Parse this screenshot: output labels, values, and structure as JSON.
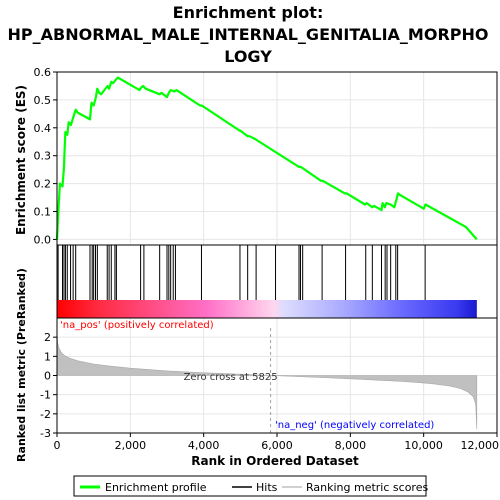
{
  "chart_data": {
    "type": "line",
    "title_lines": [
      "Enrichment plot:",
      "HP_ABNORMAL_MALE_INTERNAL_GENITALIA_MORPHO",
      "LOGY"
    ],
    "xlabel": "Rank in Ordered Dataset",
    "xlim": [
      0,
      12000
    ],
    "x_ticks": [
      0,
      2000,
      4000,
      6000,
      8000,
      10000,
      12000
    ],
    "x_tick_labels": [
      "0",
      "2,000",
      "4,000",
      "6,000",
      "8,000",
      "10,000",
      "12,000"
    ],
    "es_panel": {
      "ylabel": "Enrichment score (ES)",
      "ylim": [
        -0.02,
        0.6
      ],
      "y_ticks": [
        0.0,
        0.1,
        0.2,
        0.3,
        0.4,
        0.5,
        0.6
      ],
      "y_tick_labels": [
        "0.0",
        "0.1",
        "0.2",
        "0.3",
        "0.4",
        "0.5",
        "0.6"
      ],
      "series": [
        {
          "name": "Enrichment profile",
          "color": "#00ff00",
          "x": [
            0,
            40,
            80,
            100,
            150,
            190,
            210,
            230,
            280,
            320,
            380,
            460,
            510,
            560,
            900,
            940,
            1000,
            1060,
            1100,
            1150,
            1200,
            1380,
            1420,
            1480,
            1530,
            1620,
            1660,
            2250,
            2300,
            2350,
            2420,
            2800,
            2850,
            3000,
            3050,
            3100,
            3200,
            3260,
            3900,
            3950,
            4980,
            5000,
            5200,
            5250,
            5400,
            6600,
            6650,
            7200,
            7250,
            7850,
            7900,
            8400,
            8450,
            8600,
            8650,
            8850,
            8880,
            8940,
            8980,
            9100,
            9200,
            9250,
            9300,
            9350,
            10000,
            10050,
            11150,
            11450
          ],
          "y": [
            0.0,
            0.11,
            0.2,
            0.195,
            0.19,
            0.26,
            0.33,
            0.385,
            0.375,
            0.42,
            0.41,
            0.445,
            0.465,
            0.455,
            0.43,
            0.49,
            0.48,
            0.51,
            0.54,
            0.525,
            0.52,
            0.55,
            0.54,
            0.565,
            0.56,
            0.575,
            0.58,
            0.535,
            0.545,
            0.55,
            0.54,
            0.52,
            0.525,
            0.51,
            0.525,
            0.535,
            0.53,
            0.535,
            0.48,
            0.48,
            0.39,
            0.39,
            0.37,
            0.37,
            0.36,
            0.26,
            0.26,
            0.21,
            0.21,
            0.165,
            0.165,
            0.125,
            0.13,
            0.115,
            0.12,
            0.105,
            0.13,
            0.115,
            0.13,
            0.125,
            0.115,
            0.14,
            0.165,
            0.16,
            0.11,
            0.125,
            0.045,
            0.0
          ]
        }
      ]
    },
    "hits": {
      "name": "Hits",
      "color": "#000000",
      "positions": [
        30,
        150,
        190,
        230,
        280,
        370,
        440,
        510,
        900,
        960,
        1000,
        1050,
        1100,
        1370,
        1420,
        1480,
        1580,
        1620,
        2280,
        2370,
        2800,
        3000,
        3050,
        3100,
        3170,
        3230,
        3940,
        4990,
        5200,
        5430,
        5960,
        6600,
        6640,
        6700,
        7230,
        7870,
        8420,
        8600,
        8850,
        8950,
        9000,
        9100,
        9240,
        9290,
        10040
      ]
    },
    "rank_panel": {
      "ylabel": "Ranked list metric (PreRanked)",
      "ylim": [
        -3,
        3
      ],
      "y_ticks": [
        -3,
        -2,
        -1,
        0,
        1,
        2
      ],
      "y_tick_labels": [
        "-3",
        "-2",
        "-1",
        "0",
        "1",
        "2"
      ],
      "series": [
        {
          "name": "Ranking metric scores",
          "color": "#c0c0c0",
          "x": [
            0,
            20,
            60,
            120,
            200,
            350,
            600,
            1000,
            1500,
            2000,
            3000,
            4000,
            5000,
            5825,
            6500,
            7500,
            8500,
            9500,
            10200,
            10700,
            11000,
            11200,
            11350,
            11420,
            11450
          ],
          "y": [
            2.3,
            1.7,
            1.4,
            1.2,
            1.05,
            0.9,
            0.75,
            0.6,
            0.48,
            0.38,
            0.24,
            0.14,
            0.07,
            0.0,
            -0.05,
            -0.13,
            -0.22,
            -0.32,
            -0.42,
            -0.55,
            -0.68,
            -0.85,
            -1.1,
            -1.5,
            -2.8
          ]
        }
      ],
      "zero_cross_x": 5825,
      "annotations": {
        "zero_cross": "Zero cross at 5825",
        "pos_label": "'na_pos' (positively correlated)",
        "neg_label": "'na_neg' (negatively correlated)"
      },
      "pos_label_color": "#ff0000",
      "neg_label_color": "#0000ff"
    },
    "color_bar": {
      "stops": [
        {
          "x": 0,
          "color": "#ff0000"
        },
        {
          "x": 1100,
          "color": "#ff2a40"
        },
        {
          "x": 4100,
          "color": "#ff70c8"
        },
        {
          "x": 5900,
          "color": "#ffd6ee"
        },
        {
          "x": 6200,
          "color": "#dcdcff"
        },
        {
          "x": 7800,
          "color": "#aaaaff"
        },
        {
          "x": 9400,
          "color": "#6a6aff"
        },
        {
          "x": 10900,
          "color": "#3a3af0"
        },
        {
          "x": 11450,
          "color": "#1a1ad0"
        }
      ]
    },
    "legend": {
      "placement": "bottom",
      "entries": [
        {
          "label": "Enrichment profile",
          "color": "#00ff00"
        },
        {
          "label": "Hits",
          "color": "#000000"
        },
        {
          "label": "Ranking metric scores",
          "color": "#c0c0c0"
        }
      ]
    }
  }
}
